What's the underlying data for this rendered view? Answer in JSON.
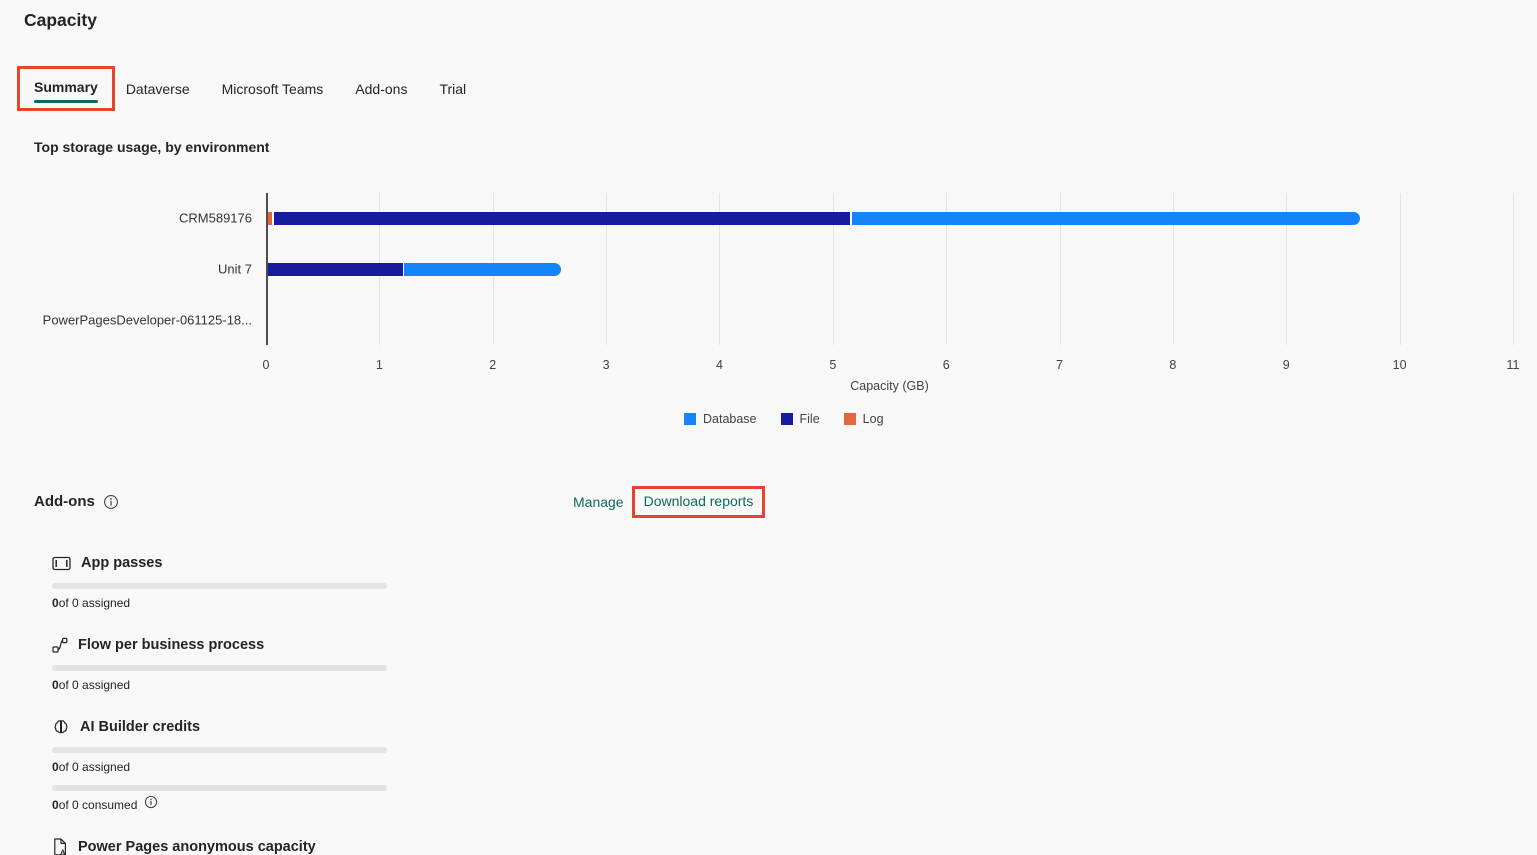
{
  "page": {
    "title": "Capacity"
  },
  "tabs": [
    {
      "label": "Summary",
      "active": true,
      "annotated": true
    },
    {
      "label": "Dataverse",
      "active": false,
      "annotated": false
    },
    {
      "label": "Microsoft Teams",
      "active": false,
      "annotated": false
    },
    {
      "label": "Add-ons",
      "active": false,
      "annotated": false
    },
    {
      "label": "Trial",
      "active": false,
      "annotated": false
    }
  ],
  "chart_data": {
    "type": "bar",
    "orientation": "horizontal",
    "stacked": true,
    "title": "Top storage usage, by environment",
    "categories": [
      "CRM589176",
      "Unit 7",
      "PowerPagesDeveloper-061125-18..."
    ],
    "series": [
      {
        "name": "Database",
        "color": "#1583fa",
        "values": [
          4.5,
          1.4,
          0
        ]
      },
      {
        "name": "File",
        "color": "#171c9d",
        "values": [
          5.1,
          1.2,
          0
        ]
      },
      {
        "name": "Log",
        "color": "#e2673d",
        "values": [
          0.05,
          0,
          0
        ]
      }
    ],
    "stack_order": [
      "Log",
      "File",
      "Database"
    ],
    "xlabel": "Capacity (GB)",
    "xlim": [
      0,
      11
    ],
    "xticks": [
      0,
      1,
      2,
      3,
      4,
      5,
      6,
      7,
      8,
      9,
      10,
      11
    ],
    "grid": true,
    "legend_position": "bottom"
  },
  "addons": {
    "heading": "Add-ons",
    "links": [
      {
        "label": "Manage",
        "annotated": false
      },
      {
        "label": "Download reports",
        "annotated": true
      }
    ],
    "items": [
      {
        "icon": "app-passes-icon",
        "label": "App passes",
        "meters": [
          {
            "bold": "0",
            "rest": " of 0 assigned",
            "info": false
          }
        ]
      },
      {
        "icon": "flow-icon",
        "label": "Flow per business process",
        "meters": [
          {
            "bold": "0",
            "rest": " of 0 assigned",
            "info": false
          }
        ]
      },
      {
        "icon": "ai-builder-icon",
        "label": "AI Builder credits",
        "meters": [
          {
            "bold": "0",
            "rest": " of 0 assigned",
            "info": false
          },
          {
            "bold": "0",
            "rest": " of 0 consumed",
            "info": true
          }
        ]
      },
      {
        "icon": "power-pages-icon",
        "label": "Power Pages anonymous capacity",
        "meters": []
      }
    ]
  },
  "colors": {
    "accent_teal": "#0e6a5a",
    "annotation_red": "#e8432c",
    "meter_track_gray": "#e3e3e3",
    "background": "#f8f8f8",
    "text": "#242424"
  }
}
